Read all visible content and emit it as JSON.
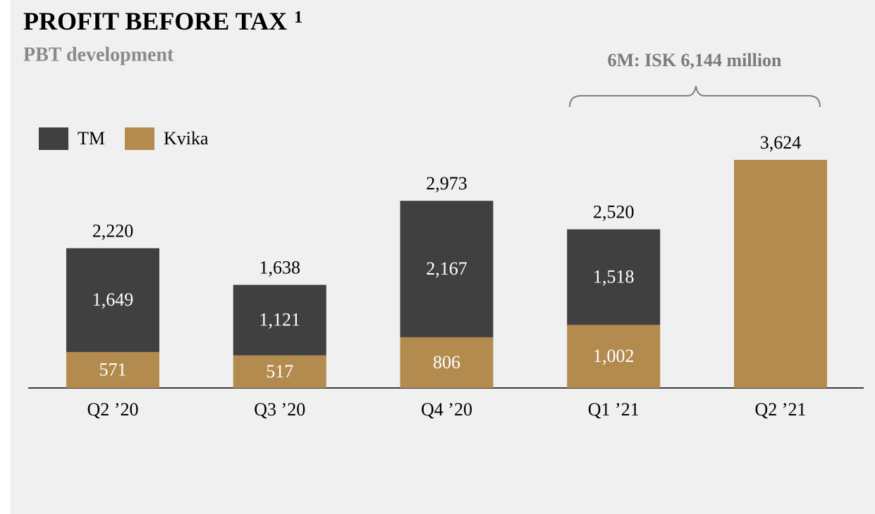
{
  "chart_data": {
    "type": "stacked_bar",
    "title": "PROFIT BEFORE TAX",
    "title_note": "1",
    "subtitle": "PBT development",
    "annotation": "6M: ISK 6,144 million",
    "categories": [
      "Q2 ’20",
      "Q3 ’20",
      "Q4 ’20",
      "Q1 ’21",
      "Q2 ’21"
    ],
    "series": [
      {
        "name": "TM",
        "color": "#404040",
        "values": [
          1649,
          1121,
          2167,
          1518,
          null
        ],
        "value_labels": [
          "1,649",
          "1,121",
          "2,167",
          "1,518",
          null
        ]
      },
      {
        "name": "Kvika",
        "color": "#b38b4f",
        "values": [
          571,
          517,
          806,
          1002,
          3624
        ],
        "value_labels": [
          "571",
          "517",
          "806",
          "1,002",
          null
        ]
      }
    ],
    "totals": [
      2220,
      1638,
      2973,
      2520,
      3624
    ],
    "total_labels": [
      "2,220",
      "1,638",
      "2,973",
      "2,520",
      "3,624"
    ]
  }
}
